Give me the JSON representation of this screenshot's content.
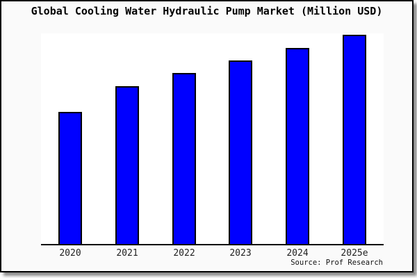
{
  "window": {
    "background_color": "#fafafa",
    "frame_color": "#000000",
    "shadow": "gray drop shadow bottom-right"
  },
  "title": "Global Cooling Water Hydraulic Pump Market (Million USD)",
  "source": "Source: Prof Research",
  "chart_data": {
    "type": "bar",
    "title": "Global Cooling Water Hydraulic Pump Market (Million USD)",
    "categories": [
      "2020",
      "2021",
      "2022",
      "2023",
      "2024",
      "2025e"
    ],
    "values": [
      190,
      227,
      246,
      264,
      282,
      301
    ],
    "value_note": "y-axis has no tick labels or scale; values are relative bar heights read from pixels",
    "xlabel": "",
    "ylabel": "",
    "ylim": [
      0,
      303
    ],
    "grid": false,
    "legend": false,
    "y_axis_visible": false,
    "x_axis_line": true,
    "bar_color": "#0000ff",
    "bar_border_color": "#000000",
    "plot_background": "#ffffff",
    "annotation": "Source: Prof Research"
  }
}
